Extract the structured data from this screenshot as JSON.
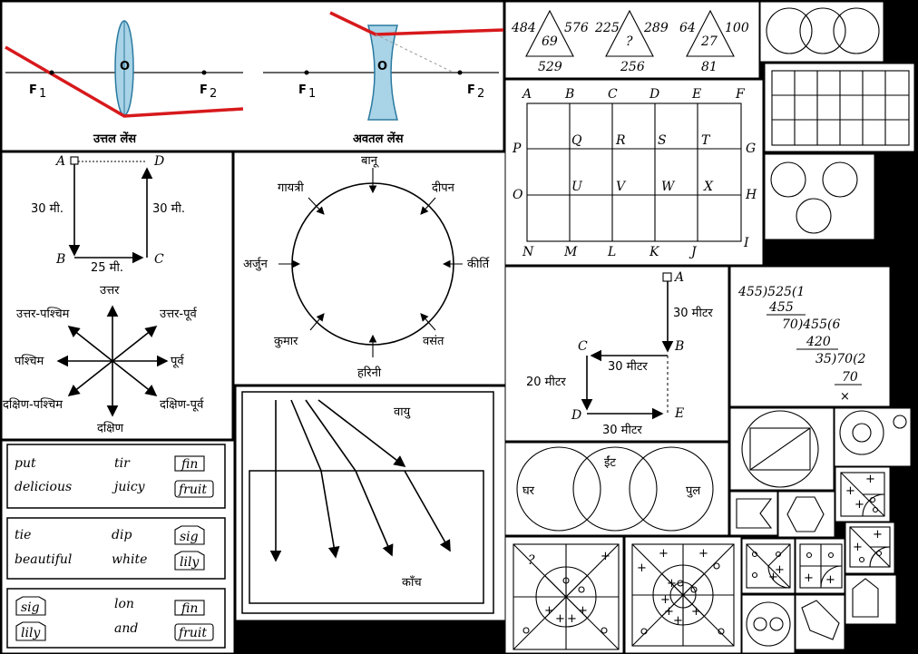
{
  "lens": {
    "f1a": "F",
    "f2a": "F",
    "f1b": "F",
    "f2b": "F",
    "sub1": "1",
    "sub2": "2",
    "o": "O",
    "convex": "उत्तल लेंस",
    "concave": "अवतल लेंस"
  },
  "rect": {
    "a": "A",
    "b": "B",
    "c": "C",
    "d": "D",
    "left": "30 मी.",
    "right": "30 मी.",
    "bottom": "25 मी."
  },
  "dirs": {
    "n": "उत्तर",
    "s": "दक्षिण",
    "e": "पूर्व",
    "w": "पश्चिम",
    "ne": "उत्तर-पूर्व",
    "nw": "उत्तर-पश्चिम",
    "se": "दक्षिण-पूर्व",
    "sw": "दक्षिण-पश्चिम"
  },
  "circle": {
    "top": "बानू",
    "tr": "दीपन",
    "right": "कीर्ति",
    "br": "वसंत",
    "bottom": "हरिनी",
    "bl": "कुमार",
    "left": "अर्जुन",
    "tl": "गायत्री"
  },
  "triangles": [
    {
      "l": "484",
      "c": "69",
      "r": "576",
      "b": "529"
    },
    {
      "l": "225",
      "c": "?",
      "r": "289",
      "b": "256"
    },
    {
      "l": "64",
      "c": "27",
      "r": "100",
      "b": "81"
    }
  ],
  "grid": {
    "top": [
      "A",
      "B",
      "C",
      "D",
      "E",
      "F"
    ],
    "bottom": [
      "N",
      "M",
      "L",
      "K",
      "J",
      "I"
    ],
    "p": "P",
    "g": "G",
    "o": "O",
    "h": "H",
    "row1": [
      "Q",
      "R",
      "S",
      "T"
    ],
    "row2": [
      "U",
      "V",
      "W",
      "X"
    ]
  },
  "route": {
    "a": "A",
    "b": "B",
    "c": "C",
    "d": "D",
    "e": "E",
    "ab": "30 मीटर",
    "cb": "30 मीटर",
    "cd": "20 मीटर",
    "de": "30 मीटर"
  },
  "division": {
    "l1": "455)525(1",
    "l2": "455",
    "l3": "70)455(6",
    "l4": "420",
    "l5": "35)70(2",
    "l6": "70",
    "l7": "×"
  },
  "refraction": {
    "air": "वायु",
    "glass": "काँच"
  },
  "venn": {
    "left": "घर",
    "top": "ईंट",
    "right": "पुल"
  },
  "words": {
    "box1": {
      "r1": [
        "put",
        "tir",
        "fin"
      ],
      "r2": [
        "delicious",
        "juicy",
        "fruit"
      ]
    },
    "box2": {
      "r1": [
        "tie",
        "dip",
        "sig"
      ],
      "r2": [
        "beautiful",
        "white",
        "lily"
      ]
    },
    "box3": {
      "r1": [
        "sig",
        "lon",
        "fin"
      ],
      "r2": [
        "lily",
        "and",
        "fruit"
      ]
    }
  },
  "plus": "+",
  "q": "?"
}
